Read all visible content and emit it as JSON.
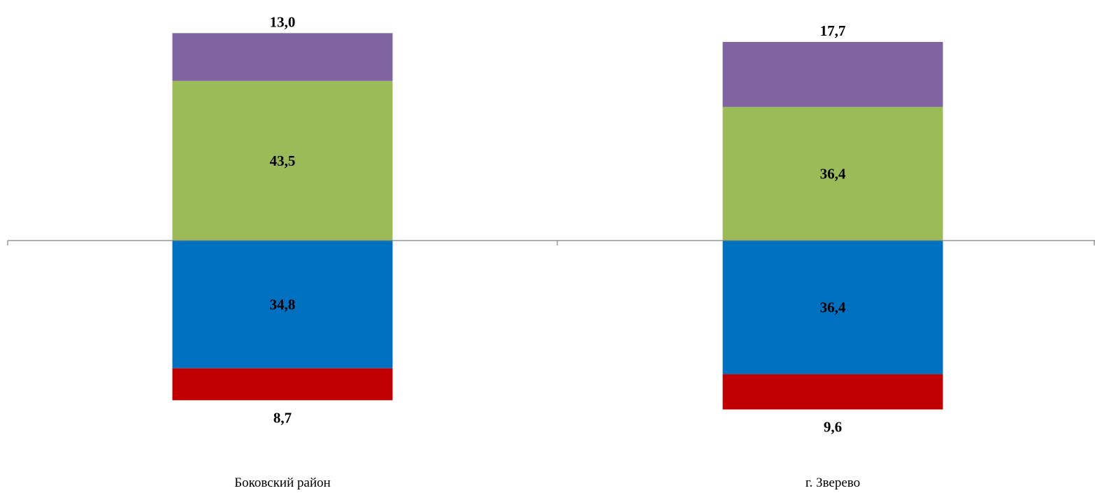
{
  "chart_data": {
    "type": "bar",
    "stacked": "diverging",
    "categories": [
      "Боковский  район",
      "г. Зверево"
    ],
    "series": [
      {
        "direction": "down",
        "values": [
          8.7,
          9.6
        ],
        "labels": [
          "8,7",
          "9,6"
        ],
        "color": "#C00000"
      },
      {
        "direction": "down",
        "values": [
          34.8,
          36.4
        ],
        "labels": [
          "34,8",
          "36,4"
        ],
        "color": "#0070C0"
      },
      {
        "direction": "up",
        "values": [
          43.5,
          36.4
        ],
        "labels": [
          "43,5",
          "36,4"
        ],
        "color": "#9BBB59"
      },
      {
        "direction": "up",
        "values": [
          13.0,
          17.7
        ],
        "labels": [
          "13,0",
          "17,7"
        ],
        "color": "#8064A2"
      }
    ],
    "axis_color": "#808080",
    "grid": false,
    "legend": "none"
  }
}
